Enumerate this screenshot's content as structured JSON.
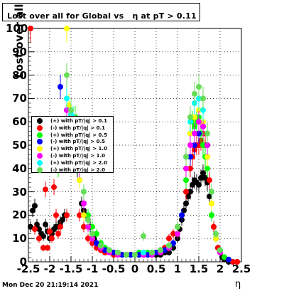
{
  "title": "Lost over all for Global vs   η at pT > 0.11",
  "timestamp": "Mon Dec 20 21:19:14 2021",
  "chart_data": {
    "type": "scatter",
    "title": "Lost over all for Global vs   η at pT > 0.11",
    "xlabel": "η",
    "ylabel": "Lost over all (%)",
    "xlim": [
      -2.5,
      2.5
    ],
    "ylim": [
      0,
      100
    ],
    "x_ticks": [
      "-2.5",
      "-2",
      "-1.5",
      "-1",
      "-0.5",
      "0",
      "0.5",
      "1",
      "1.5",
      "2",
      "2.5"
    ],
    "y_ticks": [
      "0",
      "10",
      "20",
      "30",
      "40",
      "50",
      "60",
      "70",
      "80",
      "90",
      "100"
    ],
    "grid": true,
    "legend_position": "left-middle",
    "series": [
      {
        "name": "(+) with pT/|q| > 0.1",
        "color": "#000000",
        "x": [
          -2.45,
          -2.4,
          -2.35,
          -2.3,
          -2.25,
          -2.2,
          -2.15,
          -2.1,
          -2.05,
          -2.0,
          -1.95,
          -1.9,
          -1.85,
          -1.8,
          -1.75,
          -1.7,
          -1.65,
          -1.6,
          -1.55,
          -1.5,
          -1.45,
          -1.4,
          -1.35,
          -1.3,
          -1.25,
          -1.2,
          -1.15,
          -1.1,
          -1.05,
          -1.0,
          -0.95,
          -0.9,
          -0.85,
          -0.8,
          -0.75,
          -0.7,
          -0.6,
          -0.5,
          -0.4,
          -0.3,
          -0.2,
          -0.1,
          0.0,
          0.1,
          0.2,
          0.3,
          0.4,
          0.5,
          0.6,
          0.7,
          0.8,
          0.9,
          1.0,
          1.05,
          1.1,
          1.15,
          1.2,
          1.25,
          1.3,
          1.35,
          1.4,
          1.45,
          1.5,
          1.55,
          1.6,
          1.65,
          1.7,
          1.75,
          1.8,
          1.85,
          1.9,
          1.95,
          2.0,
          2.05,
          2.1,
          2.15,
          2.2,
          2.3,
          2.4
        ],
        "y": [
          15,
          22,
          24,
          16,
          14,
          12,
          11,
          16,
          13,
          10,
          12,
          14,
          15,
          15,
          17,
          18,
          20,
          20,
          50,
          58,
          60,
          62,
          40,
          35,
          25,
          22,
          20,
          18,
          15,
          12,
          10,
          8,
          7,
          6,
          5,
          5,
          4,
          4,
          3,
          3,
          3,
          3,
          3,
          3,
          3,
          3,
          3,
          3,
          3,
          4,
          4,
          6,
          10,
          14,
          18,
          22,
          25,
          28,
          30,
          33,
          35,
          34,
          33,
          36,
          38,
          36,
          34,
          28,
          20,
          15,
          10,
          6,
          4,
          2,
          1,
          1,
          0,
          0,
          0
        ]
      },
      {
        "name": "(-) with pT/|q| > 0.1",
        "color": "#ff0000",
        "x": [
          -2.45,
          -2.35,
          -2.25,
          -2.15,
          -2.1,
          -2.05,
          -2.0,
          -1.95,
          -1.9,
          -1.85,
          -1.8,
          -1.75,
          -1.6,
          -1.55,
          -1.5,
          -1.45,
          -1.4,
          -1.3,
          -1.2,
          -1.1,
          -1.0,
          -0.9,
          -0.8,
          -0.7,
          -0.6,
          -0.5,
          -0.4,
          -0.3,
          -0.2,
          -0.1,
          0.0,
          0.1,
          0.2,
          0.3,
          0.4,
          0.5,
          0.6,
          0.7,
          0.8,
          0.9,
          1.0,
          1.1,
          1.2,
          1.3,
          1.35,
          1.4,
          1.45,
          1.5,
          1.55,
          1.6,
          1.65,
          1.7,
          1.75,
          1.8,
          1.85,
          1.9,
          1.95,
          2.0,
          2.1,
          2.2,
          2.3,
          2.4
        ],
        "y": [
          100,
          14,
          10,
          6,
          31,
          6,
          13,
          10,
          32,
          20,
          12,
          15,
          20,
          45,
          50,
          55,
          45,
          20,
          15,
          10,
          8,
          6,
          5,
          4,
          4,
          3,
          3,
          3,
          3,
          3,
          3,
          3,
          3,
          3,
          4,
          4,
          5,
          6,
          10,
          12,
          15,
          20,
          30,
          40,
          45,
          48,
          50,
          50,
          52,
          55,
          50,
          45,
          35,
          25,
          15,
          10,
          6,
          4,
          2,
          1,
          0,
          0
        ]
      },
      {
        "name": "(+) with pT/|q| > 0.5",
        "color": "#00ff00",
        "x": [
          -1.8,
          -1.7,
          -1.6,
          -1.5,
          -1.4,
          -1.3,
          -1.2,
          -1.1,
          -1.0,
          -0.9,
          -0.8,
          -0.7,
          -0.6,
          -0.5,
          -0.4,
          -0.3,
          -0.2,
          -0.1,
          0.0,
          0.1,
          0.2,
          0.3,
          0.4,
          0.5,
          0.6,
          0.7,
          0.8,
          0.9,
          1.0,
          1.1,
          1.2,
          1.3,
          1.35,
          1.4,
          1.45,
          1.5,
          1.55,
          1.6,
          1.65,
          1.7,
          1.8,
          1.9,
          2.0,
          2.1,
          2.2
        ],
        "y": [
          40,
          55,
          60,
          60,
          62,
          40,
          30,
          20,
          15,
          12,
          8,
          6,
          5,
          4,
          4,
          3,
          3,
          3,
          3,
          4,
          4,
          4,
          4,
          4,
          5,
          5,
          6,
          8,
          12,
          20,
          35,
          55,
          60,
          58,
          60,
          62,
          55,
          50,
          45,
          40,
          20,
          10,
          5,
          2,
          1
        ]
      },
      {
        "name": "(-) with pT/|q| > 0.5",
        "color": "#0000ff",
        "x": [
          -1.75,
          -1.6,
          -1.5,
          -1.4,
          -1.3,
          -1.2,
          -1.1,
          -1.0,
          -0.9,
          -0.8,
          -0.7,
          -0.5,
          -0.3,
          -0.1,
          0.1,
          0.3,
          0.5,
          0.7,
          0.9,
          1.1,
          1.3,
          1.4,
          1.5,
          1.6,
          1.7,
          1.8,
          1.9,
          2.0,
          2.2
        ],
        "y": [
          75,
          65,
          55,
          50,
          40,
          25,
          15,
          10,
          8,
          6,
          5,
          4,
          3,
          3,
          3,
          3,
          4,
          5,
          8,
          20,
          45,
          50,
          55,
          58,
          50,
          30,
          10,
          4,
          1
        ]
      },
      {
        "name": "(+) with pT/|q| > 1.0",
        "color": "#ffff00",
        "x": [
          -1.6,
          -1.55,
          -1.5,
          -1.4,
          -1.3,
          -1.2,
          -1.1,
          -1.0,
          -0.8,
          -0.6,
          -0.4,
          -0.2,
          0.0,
          0.2,
          0.4,
          0.6,
          0.8,
          1.0,
          1.2,
          1.3,
          1.4,
          1.5,
          1.6,
          1.7,
          1.8,
          1.9,
          2.0
        ],
        "y": [
          100,
          67,
          60,
          55,
          35,
          20,
          15,
          10,
          6,
          4,
          3,
          3,
          3,
          3,
          3,
          4,
          6,
          12,
          40,
          55,
          62,
          65,
          60,
          45,
          25,
          10,
          4
        ]
      },
      {
        "name": "(-) with pT/|q| > 1.0",
        "color": "#ff00ff",
        "x": [
          -1.6,
          -1.5,
          -1.4,
          -1.3,
          -1.2,
          -1.1,
          -1.0,
          -0.8,
          -0.6,
          -0.4,
          -0.2,
          0.0,
          0.2,
          0.4,
          0.6,
          0.8,
          1.0,
          1.2,
          1.3,
          1.4,
          1.5,
          1.6,
          1.7,
          1.8,
          1.9,
          2.0
        ],
        "y": [
          65,
          62,
          58,
          40,
          25,
          15,
          10,
          6,
          4,
          3,
          3,
          3,
          3,
          3,
          4,
          6,
          12,
          40,
          50,
          55,
          60,
          58,
          50,
          30,
          12,
          4
        ]
      },
      {
        "name": "(+) with pT/|q| > 2.0",
        "color": "#00ffff",
        "x": [
          -1.6,
          -1.5,
          -1.45,
          -1.4,
          -1.3,
          -1.2,
          -1.1,
          -1.0,
          -0.8,
          -0.6,
          -0.4,
          -0.2,
          0.0,
          0.2,
          0.4,
          0.6,
          0.8,
          1.0,
          1.2,
          1.3,
          1.4,
          1.5,
          1.6,
          1.7,
          1.8,
          1.9,
          2.0
        ],
        "y": [
          70,
          63,
          62,
          60,
          45,
          30,
          18,
          12,
          7,
          5,
          4,
          3,
          3,
          4,
          4,
          5,
          7,
          15,
          45,
          60,
          68,
          70,
          65,
          55,
          30,
          12,
          5
        ]
      },
      {
        "name": "(-) with pT/|q| > 2.0",
        "color": "#66dd55",
        "x": [
          -1.6,
          -1.5,
          -1.4,
          -1.3,
          -1.2,
          -1.1,
          -1.0,
          -0.8,
          -0.6,
          -0.4,
          -0.2,
          0.0,
          0.2,
          0.4,
          0.6,
          0.8,
          1.0,
          1.2,
          1.3,
          1.4,
          1.5,
          1.6,
          1.7,
          1.8,
          1.9,
          2.0
        ],
        "y": [
          80,
          65,
          60,
          45,
          30,
          18,
          12,
          7,
          5,
          4,
          3,
          3,
          11,
          4,
          5,
          7,
          15,
          45,
          62,
          72,
          75,
          70,
          55,
          30,
          12,
          5
        ]
      }
    ]
  }
}
